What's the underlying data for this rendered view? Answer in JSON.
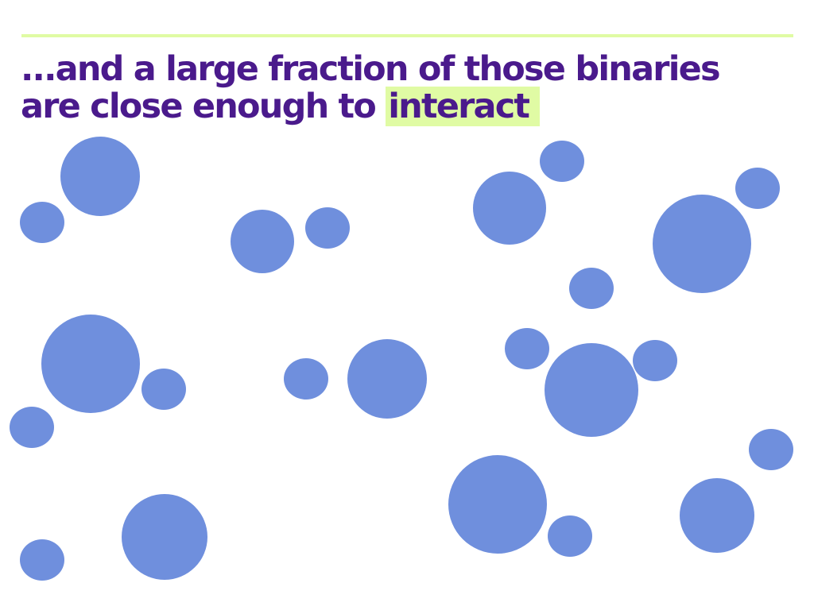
{
  "slide": {
    "title_part1": "...and a large fraction of those binaries",
    "title_part2": "are close enough to",
    "title_highlight": "interact"
  },
  "colors": {
    "title": "#4a1a8c",
    "accent_line": "#e0fba4",
    "highlight": "#e0fba4",
    "star": "#6f8fdd",
    "background": "#ffffff"
  }
}
